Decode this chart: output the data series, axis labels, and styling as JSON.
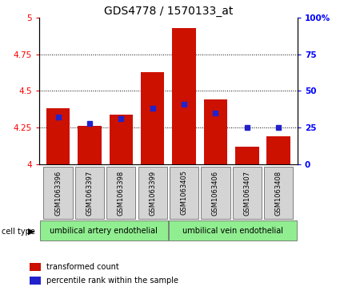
{
  "title": "GDS4778 / 1570133_at",
  "samples": [
    "GSM1063396",
    "GSM1063397",
    "GSM1063398",
    "GSM1063399",
    "GSM1063405",
    "GSM1063406",
    "GSM1063407",
    "GSM1063408"
  ],
  "red_values": [
    4.38,
    4.26,
    4.34,
    4.63,
    4.93,
    4.44,
    4.12,
    4.19
  ],
  "blue_percentiles": [
    32,
    28,
    31,
    38,
    41,
    35,
    25,
    25
  ],
  "ylim_left": [
    4.0,
    5.0
  ],
  "ylim_right": [
    0,
    100
  ],
  "yticks_left": [
    4.0,
    4.25,
    4.5,
    4.75,
    5.0
  ],
  "yticks_right": [
    0,
    25,
    50,
    75,
    100
  ],
  "ytick_labels_left": [
    "4",
    "4.25",
    "4.5",
    "4.75",
    "5"
  ],
  "ytick_labels_right": [
    "0",
    "25",
    "50",
    "75",
    "100%"
  ],
  "cell_group1_label": "umbilical artery endothelial",
  "cell_group2_label": "umbilical vein endothelial",
  "group_color": "#90EE90",
  "bar_color": "#CC1100",
  "dot_color": "#2222CC",
  "bar_width": 0.75,
  "cell_type_label": "cell type",
  "legend_items": [
    "transformed count",
    "percentile rank within the sample"
  ],
  "title_fontsize": 10,
  "tick_fontsize": 7.5,
  "sample_fontsize": 6,
  "legend_fontsize": 7,
  "celllabel_fontsize": 7
}
